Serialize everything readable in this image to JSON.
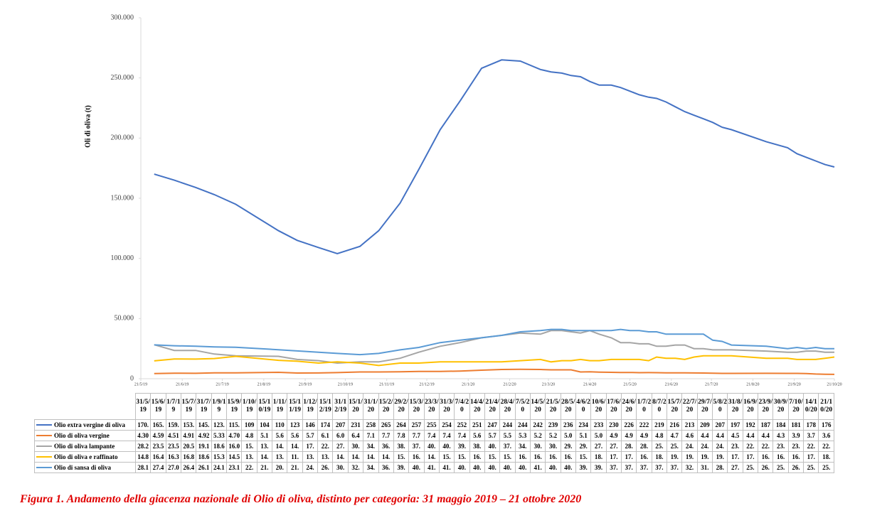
{
  "chart_data": {
    "type": "line",
    "y_label": "Oli di oliva (t)",
    "caption": "Figura 1. Andamento della giacenza nazionale di Olio di oliva, distinto per categoria: 31 maggio 2019 – 21 ottobre 2020",
    "ylim": [
      0,
      300000
    ],
    "yticks": [
      {
        "value": 0,
        "label": "0"
      },
      {
        "value": 50000,
        "label": "50.000"
      },
      {
        "value": 100000,
        "label": "100.000"
      },
      {
        "value": 150000,
        "label": "150.000"
      },
      {
        "value": 200000,
        "label": "200.000"
      },
      {
        "value": 250000,
        "label": "250.000"
      },
      {
        "value": 300000,
        "label": "300.000"
      }
    ],
    "xlim": [
      "21/5/19",
      "21/10/20"
    ],
    "xticks": [
      "21/5/19",
      "21/6/19",
      "21/7/19",
      "21/8/19",
      "21/9/19",
      "21/10/19",
      "21/11/19",
      "21/12/19",
      "21/1/20",
      "21/2/20",
      "21/3/20",
      "21/4/20",
      "21/5/20",
      "21/6/20",
      "21/7/20",
      "21/8/20",
      "21/9/20",
      "21/10/20"
    ],
    "grid": false,
    "categories": [
      "31/5/19",
      "15/6/19",
      "1/7/19",
      "15/7/19",
      "31/7/19",
      "1/9/19",
      "15/9/19",
      "1/10/19",
      "15/10/19",
      "1/11/19",
      "15/11/19",
      "1/12/19",
      "15/12/19",
      "31/12/19",
      "15/1/20",
      "31/1/20",
      "15/2/20",
      "29/2/20",
      "15/3/20",
      "23/3/20",
      "31/3/20",
      "7/4/20",
      "14/4/20",
      "21/4/20",
      "28/4/20",
      "7/5/20",
      "14/5/20",
      "21/5/20",
      "28/5/20",
      "4/6/20",
      "10/6/20",
      "17/6/20",
      "24/6/20",
      "1/7/20",
      "8/7/20",
      "15/7/20",
      "22/7/20",
      "29/7/20",
      "5/8/20",
      "31/8/20",
      "16/9/20",
      "23/9/20",
      "30/9/20",
      "7/10/20",
      "14/10/20",
      "21/10/20"
    ],
    "series": [
      {
        "name": "Olio extra vergine di oliva",
        "color": "#4472c4",
        "values": [
          170000,
          165000,
          159000,
          153000,
          145000,
          123000,
          115000,
          109000,
          104000,
          110000,
          123000,
          146000,
          174000,
          207000,
          231000,
          258000,
          265000,
          264000,
          257000,
          255000,
          254000,
          252000,
          251000,
          247000,
          244000,
          244000,
          242000,
          239000,
          236000,
          234000,
          233000,
          230000,
          226000,
          222000,
          219000,
          216000,
          213000,
          209000,
          207000,
          197000,
          192000,
          187000,
          184000,
          181000,
          178000,
          176000
        ],
        "value_labels": [
          "170.",
          "165.",
          "159.",
          "153.",
          "145.",
          "123.",
          "115.",
          "109",
          "104",
          "110",
          "123",
          "146",
          "174",
          "207",
          "231",
          "258",
          "265",
          "264",
          "257",
          "255",
          "254",
          "252",
          "251",
          "247",
          "244",
          "244",
          "242",
          "239",
          "236",
          "234",
          "233",
          "230",
          "226",
          "222",
          "219",
          "216",
          "213",
          "209",
          "207",
          "197",
          "192",
          "187",
          "184",
          "181",
          "178",
          "176"
        ]
      },
      {
        "name": "Olio di oliva vergine",
        "color": "#ed7d31",
        "values": [
          4300,
          4590,
          4510,
          4910,
          4920,
          5330,
          4700,
          4800,
          5100,
          5600,
          5600,
          5700,
          6100,
          6000,
          6400,
          7100,
          7700,
          7800,
          7700,
          7400,
          7400,
          7400,
          5600,
          5700,
          5500,
          5300,
          5200,
          5200,
          5000,
          5100,
          5000,
          4900,
          4900,
          4900,
          4800,
          4700,
          4600,
          4400,
          4400,
          4500,
          4400,
          4400,
          4300,
          3900,
          3700,
          3600
        ],
        "value_labels": [
          "4.30",
          "4.59",
          "4.51",
          "4.91",
          "4.92",
          "5.33",
          "4.70",
          "4.8",
          "5.1",
          "5.6",
          "5.6",
          "5.7",
          "6.1",
          "6.0",
          "6.4",
          "7.1",
          "7.7",
          "7.8",
          "7.7",
          "7.4",
          "7.4",
          "7.4",
          "5.6",
          "5.7",
          "5.5",
          "5.3",
          "5.2",
          "5.2",
          "5.0",
          "5.1",
          "5.0",
          "4.9",
          "4.9",
          "4.9",
          "4.8",
          "4.7",
          "4.6",
          "4.4",
          "4.4",
          "4.5",
          "4.4",
          "4.4",
          "4.3",
          "3.9",
          "3.7",
          "3.6"
        ]
      },
      {
        "name": "Olio di oliva lampante",
        "color": "#a5a5a5",
        "values": [
          28200,
          23500,
          23500,
          20500,
          19100,
          18600,
          16000,
          15000,
          13000,
          14000,
          14000,
          17000,
          22000,
          27000,
          30000,
          34000,
          36000,
          38000,
          37000,
          40000,
          40000,
          39000,
          38000,
          40000,
          37000,
          34000,
          30000,
          30000,
          29000,
          29000,
          27000,
          27000,
          28000,
          28000,
          25000,
          25000,
          24000,
          24000,
          24000,
          23000,
          22000,
          22000,
          23000,
          23000,
          22000,
          22000
        ],
        "value_labels": [
          "28.2",
          "23.5",
          "23.5",
          "20.5",
          "19.1",
          "18.6",
          "16.0",
          "15.",
          "13.",
          "14.",
          "14.",
          "17.",
          "22.",
          "27.",
          "30.",
          "34.",
          "36.",
          "38.",
          "37.",
          "40.",
          "40.",
          "39.",
          "38.",
          "40.",
          "37.",
          "34.",
          "30.",
          "30.",
          "29.",
          "29.",
          "27.",
          "27.",
          "28.",
          "28.",
          "25.",
          "25.",
          "24.",
          "24.",
          "24.",
          "23.",
          "22.",
          "22.",
          "23.",
          "23.",
          "22.",
          "22."
        ]
      },
      {
        "name": "Olio di oliva e raffinato",
        "color": "#ffc000",
        "values": [
          14800,
          16400,
          16300,
          16800,
          18600,
          15300,
          14500,
          13000,
          14000,
          13000,
          11000,
          13000,
          13000,
          14000,
          14000,
          14000,
          14000,
          15000,
          16000,
          14000,
          15000,
          15000,
          16000,
          15000,
          15000,
          16000,
          16000,
          16000,
          16000,
          15000,
          18000,
          17000,
          17000,
          16000,
          18000,
          19000,
          19000,
          19000,
          19000,
          17000,
          17000,
          16000,
          16000,
          16000,
          17000,
          18000
        ],
        "value_labels": [
          "14.8",
          "16.4",
          "16.3",
          "16.8",
          "18.6",
          "15.3",
          "14.5",
          "13.",
          "14.",
          "13.",
          "11.",
          "13.",
          "13.",
          "14.",
          "14.",
          "14.",
          "14.",
          "15.",
          "16.",
          "14.",
          "15.",
          "15.",
          "16.",
          "15.",
          "15.",
          "16.",
          "16.",
          "16.",
          "16.",
          "15.",
          "18.",
          "17.",
          "17.",
          "16.",
          "18.",
          "19.",
          "19.",
          "19.",
          "19.",
          "17.",
          "17.",
          "16.",
          "16.",
          "16.",
          "17.",
          "18."
        ]
      },
      {
        "name": "Olio di sansa di oliva",
        "color": "#5b9bd5",
        "values": [
          28100,
          27400,
          27000,
          26400,
          26100,
          24100,
          23100,
          22000,
          21000,
          20000,
          21000,
          24000,
          26000,
          30000,
          32000,
          34000,
          36000,
          39000,
          40000,
          41000,
          41000,
          40000,
          40000,
          40000,
          40000,
          40000,
          41000,
          40000,
          40000,
          39000,
          39000,
          37000,
          37000,
          37000,
          37000,
          37000,
          32000,
          31000,
          28000,
          27000,
          25000,
          26000,
          25000,
          26000,
          25000,
          25000
        ],
        "value_labels": [
          "28.1",
          "27.4",
          "27.0",
          "26.4",
          "26.1",
          "24.1",
          "23.1",
          "22.",
          "21.",
          "20.",
          "21.",
          "24.",
          "26.",
          "30.",
          "32.",
          "34.",
          "36.",
          "39.",
          "40.",
          "41.",
          "41.",
          "40.",
          "40.",
          "40.",
          "40.",
          "40.",
          "41.",
          "40.",
          "40.",
          "39.",
          "39.",
          "37.",
          "37.",
          "37.",
          "37.",
          "37.",
          "32.",
          "31.",
          "28.",
          "27.",
          "25.",
          "26.",
          "25.",
          "26.",
          "25.",
          "25."
        ]
      }
    ]
  }
}
